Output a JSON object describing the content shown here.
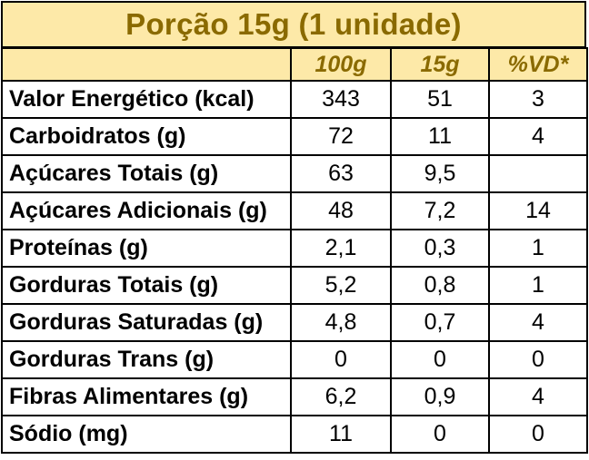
{
  "title": "Porção 15g (1 unidade)",
  "headers": [
    "",
    "100g",
    "15g",
    "%VD*"
  ],
  "rows": [
    {
      "label": "Valor Energético (kcal)",
      "v100": "343",
      "v15": "51",
      "vd": "3"
    },
    {
      "label": "Carboidratos (g)",
      "v100": "72",
      "v15": "11",
      "vd": "4"
    },
    {
      "label": "Açúcares Totais (g)",
      "v100": "63",
      "v15": "9,5",
      "vd": ""
    },
    {
      "label": "Açúcares Adicionais (g)",
      "v100": "48",
      "v15": "7,2",
      "vd": "14"
    },
    {
      "label": "Proteínas (g)",
      "v100": "2,1",
      "v15": "0,3",
      "vd": "1"
    },
    {
      "label": "Gorduras Totais (g)",
      "v100": "5,2",
      "v15": "0,8",
      "vd": "1"
    },
    {
      "label": "Gorduras Saturadas (g)",
      "v100": "4,8",
      "v15": "0,7",
      "vd": "4"
    },
    {
      "label": "Gorduras Trans (g)",
      "v100": "0",
      "v15": "0",
      "vd": "0"
    },
    {
      "label": "Fibras Alimentares (g)",
      "v100": "6,2",
      "v15": "0,9",
      "vd": "4"
    },
    {
      "label": "Sódio (mg)",
      "v100": "11",
      "v15": "0",
      "vd": "0"
    }
  ],
  "colors": {
    "header_bg": "#fde9a8",
    "header_text": "#8a6a00",
    "border": "#000000"
  }
}
